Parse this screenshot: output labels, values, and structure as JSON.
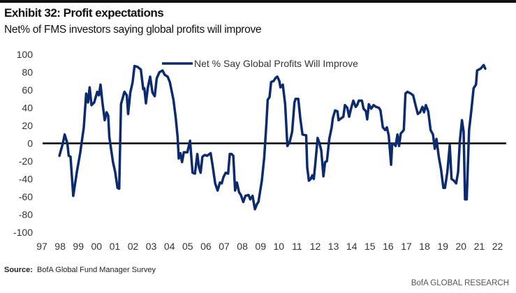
{
  "header": {
    "title": "Exhibit 32: Profit expectations",
    "subtitle": "Net% of FMS investors saying global profits will improve"
  },
  "footer": {
    "source_label": "Source:",
    "source_text": "BofA Global Fund Manager Survey",
    "brand": "BofA GLOBAL RESEARCH"
  },
  "chart_data": {
    "type": "line",
    "title": "",
    "xlabel": "",
    "ylabel": "",
    "ylim": [
      -100,
      100
    ],
    "xlim": [
      1997,
      2022
    ],
    "grid": false,
    "zero_line": true,
    "legend_placement": "top-center",
    "y_ticks": [
      "100",
      "80",
      "60",
      "40",
      "20",
      "0",
      "-20",
      "-40",
      "-60",
      "-80",
      "-100"
    ],
    "x_ticks": [
      "97",
      "98",
      "99",
      "00",
      "01",
      "02",
      "03",
      "04",
      "05",
      "06",
      "07",
      "08",
      "09",
      "10",
      "11",
      "12",
      "13",
      "14",
      "15",
      "16",
      "17",
      "18",
      "19",
      "20",
      "21",
      "22"
    ],
    "colors": {
      "series": "#0c2a6e",
      "zero_line": "#000000"
    },
    "series": [
      {
        "name": "Net % Say Global Profits Will Improve",
        "points": [
          [
            1997.96,
            -14
          ],
          [
            1998.15,
            0
          ],
          [
            1998.25,
            10
          ],
          [
            1998.4,
            0
          ],
          [
            1998.47,
            -14
          ],
          [
            1998.57,
            -15
          ],
          [
            1998.72,
            -59
          ],
          [
            1998.92,
            -32
          ],
          [
            1999.1,
            -11
          ],
          [
            1999.3,
            18
          ],
          [
            1999.43,
            56
          ],
          [
            1999.53,
            46
          ],
          [
            1999.62,
            63
          ],
          [
            1999.72,
            43
          ],
          [
            1999.87,
            46
          ],
          [
            2000.04,
            58
          ],
          [
            2000.13,
            54
          ],
          [
            2000.22,
            66
          ],
          [
            2000.32,
            46
          ],
          [
            2000.45,
            26
          ],
          [
            2000.55,
            35
          ],
          [
            2000.64,
            31
          ],
          [
            2000.7,
            7
          ],
          [
            2000.9,
            -21
          ],
          [
            2001.02,
            -32
          ],
          [
            2001.15,
            -50
          ],
          [
            2001.24,
            -51
          ],
          [
            2001.34,
            44
          ],
          [
            2001.53,
            58
          ],
          [
            2001.66,
            54
          ],
          [
            2001.73,
            33
          ],
          [
            2001.85,
            57
          ],
          [
            2001.98,
            69
          ],
          [
            2002.08,
            87
          ],
          [
            2002.24,
            86
          ],
          [
            2002.43,
            83
          ],
          [
            2002.56,
            61
          ],
          [
            2002.62,
            62
          ],
          [
            2002.71,
            45
          ],
          [
            2002.81,
            62
          ],
          [
            2002.94,
            75
          ],
          [
            2003.07,
            57
          ],
          [
            2003.19,
            53
          ],
          [
            2003.3,
            73
          ],
          [
            2003.45,
            80
          ],
          [
            2003.62,
            82
          ],
          [
            2003.74,
            77
          ],
          [
            2003.9,
            75
          ],
          [
            2004.02,
            69
          ],
          [
            2004.22,
            49
          ],
          [
            2004.35,
            28
          ],
          [
            2004.45,
            7
          ],
          [
            2004.51,
            -17
          ],
          [
            2004.6,
            -11
          ],
          [
            2004.69,
            -21
          ],
          [
            2004.79,
            -10
          ],
          [
            2004.98,
            -10
          ],
          [
            2005.13,
            3
          ],
          [
            2005.27,
            -33
          ],
          [
            2005.4,
            -34
          ],
          [
            2005.53,
            -12
          ],
          [
            2005.62,
            -27
          ],
          [
            2005.71,
            -33
          ],
          [
            2005.81,
            -15
          ],
          [
            2005.94,
            -13
          ],
          [
            2006.07,
            -14
          ],
          [
            2006.26,
            -11
          ],
          [
            2006.36,
            -24
          ],
          [
            2006.51,
            -45
          ],
          [
            2006.64,
            -53
          ],
          [
            2006.77,
            -44
          ],
          [
            2006.87,
            -45
          ],
          [
            2006.96,
            -38
          ],
          [
            2007.09,
            -33
          ],
          [
            2007.22,
            -34
          ],
          [
            2007.31,
            -12
          ],
          [
            2007.41,
            -12
          ],
          [
            2007.5,
            -14
          ],
          [
            2007.6,
            -53
          ],
          [
            2007.7,
            -44
          ],
          [
            2007.82,
            -55
          ],
          [
            2007.92,
            -58
          ],
          [
            2008.05,
            -66
          ],
          [
            2008.17,
            -59
          ],
          [
            2008.34,
            -58
          ],
          [
            2008.43,
            -63
          ],
          [
            2008.56,
            -59
          ],
          [
            2008.69,
            -74
          ],
          [
            2008.81,
            -68
          ],
          [
            2008.88,
            -66
          ],
          [
            2009.07,
            -42
          ],
          [
            2009.2,
            -16
          ],
          [
            2009.32,
            23
          ],
          [
            2009.39,
            49
          ],
          [
            2009.49,
            52
          ],
          [
            2009.58,
            69
          ],
          [
            2009.71,
            70
          ],
          [
            2009.84,
            74
          ],
          [
            2009.92,
            75
          ],
          [
            2010.03,
            70
          ],
          [
            2010.09,
            63
          ],
          [
            2010.22,
            66
          ],
          [
            2010.35,
            44
          ],
          [
            2010.47,
            -3
          ],
          [
            2010.6,
            2
          ],
          [
            2010.73,
            13
          ],
          [
            2010.86,
            46
          ],
          [
            2010.92,
            50
          ],
          [
            2011.07,
            50
          ],
          [
            2011.18,
            28
          ],
          [
            2011.3,
            10
          ],
          [
            2011.5,
            9
          ],
          [
            2011.56,
            -27
          ],
          [
            2011.65,
            -42
          ],
          [
            2011.75,
            -40
          ],
          [
            2011.84,
            -36
          ],
          [
            2011.92,
            -40
          ],
          [
            2012.01,
            -21
          ],
          [
            2012.13,
            6
          ],
          [
            2012.22,
            1
          ],
          [
            2012.33,
            -8
          ],
          [
            2012.45,
            -37
          ],
          [
            2012.54,
            -21
          ],
          [
            2012.64,
            -20
          ],
          [
            2012.77,
            5
          ],
          [
            2012.9,
            18
          ],
          [
            2012.96,
            28
          ],
          [
            2013.09,
            37
          ],
          [
            2013.22,
            36
          ],
          [
            2013.28,
            26
          ],
          [
            2013.41,
            28
          ],
          [
            2013.54,
            30
          ],
          [
            2013.63,
            43
          ],
          [
            2013.76,
            40
          ],
          [
            2013.86,
            30
          ],
          [
            2013.96,
            39
          ],
          [
            2014.09,
            48
          ],
          [
            2014.22,
            41
          ],
          [
            2014.3,
            43
          ],
          [
            2014.39,
            48
          ],
          [
            2014.56,
            48
          ],
          [
            2014.65,
            39
          ],
          [
            2014.78,
            36
          ],
          [
            2014.85,
            27
          ],
          [
            2014.94,
            44
          ],
          [
            2015.07,
            39
          ],
          [
            2015.2,
            43
          ],
          [
            2015.33,
            41
          ],
          [
            2015.49,
            40
          ],
          [
            2015.58,
            37
          ],
          [
            2015.71,
            18
          ],
          [
            2015.84,
            15
          ],
          [
            2015.93,
            18
          ],
          [
            2016.03,
            9
          ],
          [
            2016.16,
            -24
          ],
          [
            2016.22,
            -1
          ],
          [
            2016.35,
            -1
          ],
          [
            2016.41,
            -3
          ],
          [
            2016.51,
            10
          ],
          [
            2016.6,
            -3
          ],
          [
            2016.69,
            11
          ],
          [
            2016.86,
            15
          ],
          [
            2016.95,
            56
          ],
          [
            2017.05,
            58
          ],
          [
            2017.24,
            56
          ],
          [
            2017.37,
            54
          ],
          [
            2017.5,
            43
          ],
          [
            2017.63,
            33
          ],
          [
            2017.75,
            35
          ],
          [
            2017.88,
            41
          ],
          [
            2017.97,
            35
          ],
          [
            2018.07,
            43
          ],
          [
            2018.2,
            36
          ],
          [
            2018.33,
            15
          ],
          [
            2018.46,
            10
          ],
          [
            2018.56,
            -6
          ],
          [
            2018.65,
            5
          ],
          [
            2018.77,
            -14
          ],
          [
            2018.9,
            -29
          ],
          [
            2019.03,
            -50
          ],
          [
            2019.12,
            -50
          ],
          [
            2019.25,
            -32
          ],
          [
            2019.38,
            -2
          ],
          [
            2019.48,
            -40
          ],
          [
            2019.61,
            -42
          ],
          [
            2019.73,
            -45
          ],
          [
            2019.84,
            -32
          ],
          [
            2019.93,
            2
          ],
          [
            2020.05,
            26
          ],
          [
            2020.14,
            13
          ],
          [
            2020.22,
            -63
          ],
          [
            2020.31,
            -63
          ],
          [
            2020.44,
            15
          ],
          [
            2020.56,
            36
          ],
          [
            2020.69,
            62
          ],
          [
            2020.82,
            66
          ],
          [
            2020.88,
            82
          ],
          [
            2021.07,
            84
          ],
          [
            2021.16,
            86
          ],
          [
            2021.24,
            88
          ],
          [
            2021.33,
            84
          ]
        ]
      }
    ]
  }
}
